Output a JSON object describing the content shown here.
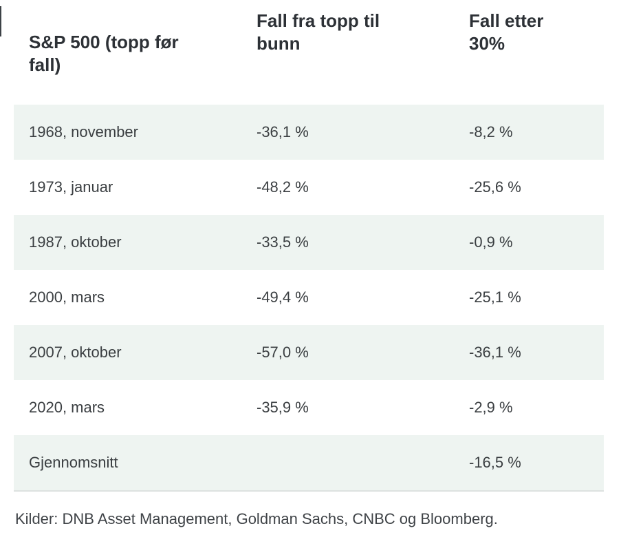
{
  "chart_data": {
    "type": "table",
    "title": "",
    "columns": [
      "S&P 500 (topp før fall)",
      "Fall fra topp til bunn",
      "Fall etter 30%"
    ],
    "rows": [
      {
        "label": "1968, november",
        "fall_topp_bunn": "-36,1 %",
        "fall_etter_30": "-8,2 %"
      },
      {
        "label": "1973, januar",
        "fall_topp_bunn": "-48,2 %",
        "fall_etter_30": "-25,6 %"
      },
      {
        "label": "1987, oktober",
        "fall_topp_bunn": "-33,5 %",
        "fall_etter_30": "-0,9 %"
      },
      {
        "label": "2000, mars",
        "fall_topp_bunn": "-49,4 %",
        "fall_etter_30": "-25,1 %"
      },
      {
        "label": "2007, oktober",
        "fall_topp_bunn": "-57,0 %",
        "fall_etter_30": "-36,1 %"
      },
      {
        "label": "2020, mars",
        "fall_topp_bunn": "-35,9 %",
        "fall_etter_30": "-2,9 %"
      },
      {
        "label": "Gjennomsnitt",
        "fall_topp_bunn": "",
        "fall_etter_30": "-16,5 %"
      }
    ],
    "source": "Kilder: DNB Asset Management, Goldman Sachs, CNBC og Bloomberg.",
    "layout": {
      "striped": true,
      "stripe_pattern": "odd-rows-tinted"
    }
  },
  "colors": {
    "row_tint": "#eef4f1",
    "header_text": "#2d3136",
    "body_text": "#3a3e41",
    "divider": "#dde2e0",
    "background": "#ffffff"
  }
}
